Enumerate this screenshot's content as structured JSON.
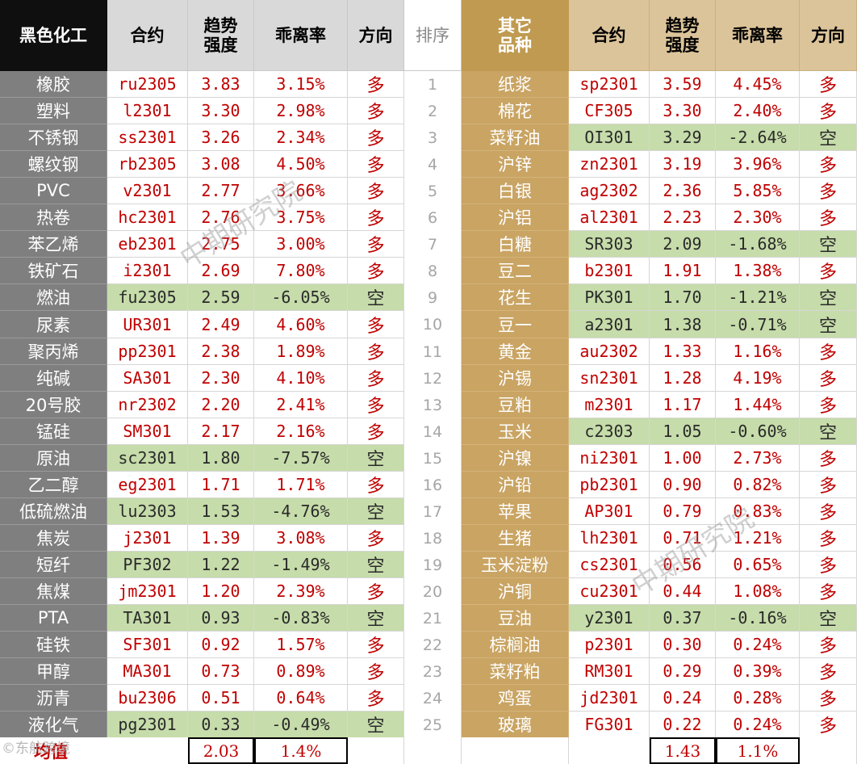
{
  "headers": {
    "left_name": "黑色化工",
    "contract": "合约",
    "trend": "趋势\n强度",
    "deviation": "乖离率",
    "direction": "方向",
    "rank": "排序",
    "right_name": "其它\n品种"
  },
  "ranks": [
    "1",
    "2",
    "3",
    "4",
    "5",
    "6",
    "7",
    "8",
    "9",
    "10",
    "11",
    "12",
    "13",
    "14",
    "15",
    "16",
    "17",
    "18",
    "19",
    "20",
    "21",
    "22",
    "23",
    "24",
    "25"
  ],
  "left_rows": [
    {
      "name": "橡胶",
      "contract": "ru2305",
      "trend": "3.83",
      "deviation": "3.15%",
      "direction": "多"
    },
    {
      "name": "塑料",
      "contract": "l2301",
      "trend": "3.30",
      "deviation": "2.98%",
      "direction": "多"
    },
    {
      "name": "不锈钢",
      "contract": "ss2301",
      "trend": "3.26",
      "deviation": "2.34%",
      "direction": "多"
    },
    {
      "name": "螺纹钢",
      "contract": "rb2305",
      "trend": "3.08",
      "deviation": "4.50%",
      "direction": "多"
    },
    {
      "name": "PVC",
      "contract": "v2301",
      "trend": "2.77",
      "deviation": "3.66%",
      "direction": "多"
    },
    {
      "name": "热卷",
      "contract": "hc2301",
      "trend": "2.76",
      "deviation": "3.75%",
      "direction": "多"
    },
    {
      "name": "苯乙烯",
      "contract": "eb2301",
      "trend": "2.75",
      "deviation": "3.00%",
      "direction": "多"
    },
    {
      "name": "铁矿石",
      "contract": "i2301",
      "trend": "2.69",
      "deviation": "7.80%",
      "direction": "多"
    },
    {
      "name": "燃油",
      "contract": "fu2305",
      "trend": "2.59",
      "deviation": "-6.05%",
      "direction": "空"
    },
    {
      "name": "尿素",
      "contract": "UR301",
      "trend": "2.49",
      "deviation": "4.60%",
      "direction": "多"
    },
    {
      "name": "聚丙烯",
      "contract": "pp2301",
      "trend": "2.38",
      "deviation": "1.89%",
      "direction": "多"
    },
    {
      "name": "纯碱",
      "contract": "SA301",
      "trend": "2.30",
      "deviation": "4.10%",
      "direction": "多"
    },
    {
      "name": "20号胶",
      "contract": "nr2302",
      "trend": "2.20",
      "deviation": "2.41%",
      "direction": "多"
    },
    {
      "name": "锰硅",
      "contract": "SM301",
      "trend": "2.17",
      "deviation": "2.16%",
      "direction": "多"
    },
    {
      "name": "原油",
      "contract": "sc2301",
      "trend": "1.80",
      "deviation": "-7.57%",
      "direction": "空"
    },
    {
      "name": "乙二醇",
      "contract": "eg2301",
      "trend": "1.71",
      "deviation": "1.71%",
      "direction": "多"
    },
    {
      "name": "低硫燃油",
      "contract": "lu2303",
      "trend": "1.53",
      "deviation": "-4.76%",
      "direction": "空"
    },
    {
      "name": "焦炭",
      "contract": "j2301",
      "trend": "1.39",
      "deviation": "3.08%",
      "direction": "多"
    },
    {
      "name": "短纤",
      "contract": "PF302",
      "trend": "1.22",
      "deviation": "-1.49%",
      "direction": "空"
    },
    {
      "name": "焦煤",
      "contract": "jm2301",
      "trend": "1.20",
      "deviation": "2.39%",
      "direction": "多"
    },
    {
      "name": "PTA",
      "contract": "TA301",
      "trend": "0.93",
      "deviation": "-0.83%",
      "direction": "空"
    },
    {
      "name": "硅铁",
      "contract": "SF301",
      "trend": "0.92",
      "deviation": "1.57%",
      "direction": "多"
    },
    {
      "name": "甲醇",
      "contract": "MA301",
      "trend": "0.73",
      "deviation": "0.89%",
      "direction": "多"
    },
    {
      "name": "沥青",
      "contract": "bu2306",
      "trend": "0.51",
      "deviation": "0.64%",
      "direction": "多"
    },
    {
      "name": "液化气",
      "contract": "pg2301",
      "trend": "0.33",
      "deviation": "-0.49%",
      "direction": "空"
    }
  ],
  "right_rows": [
    {
      "name": "纸浆",
      "contract": "sp2301",
      "trend": "3.59",
      "deviation": "4.45%",
      "direction": "多"
    },
    {
      "name": "棉花",
      "contract": "CF305",
      "trend": "3.30",
      "deviation": "2.40%",
      "direction": "多"
    },
    {
      "name": "菜籽油",
      "contract": "OI301",
      "trend": "3.29",
      "deviation": "-2.64%",
      "direction": "空"
    },
    {
      "name": "沪锌",
      "contract": "zn2301",
      "trend": "3.19",
      "deviation": "3.96%",
      "direction": "多"
    },
    {
      "name": "白银",
      "contract": "ag2302",
      "trend": "2.36",
      "deviation": "5.85%",
      "direction": "多"
    },
    {
      "name": "沪铝",
      "contract": "al2301",
      "trend": "2.23",
      "deviation": "2.30%",
      "direction": "多"
    },
    {
      "name": "白糖",
      "contract": "SR303",
      "trend": "2.09",
      "deviation": "-1.68%",
      "direction": "空"
    },
    {
      "name": "豆二",
      "contract": "b2301",
      "trend": "1.91",
      "deviation": "1.38%",
      "direction": "多"
    },
    {
      "name": "花生",
      "contract": "PK301",
      "trend": "1.70",
      "deviation": "-1.21%",
      "direction": "空"
    },
    {
      "name": "豆一",
      "contract": "a2301",
      "trend": "1.38",
      "deviation": "-0.71%",
      "direction": "空"
    },
    {
      "name": "黄金",
      "contract": "au2302",
      "trend": "1.33",
      "deviation": "1.16%",
      "direction": "多"
    },
    {
      "name": "沪锡",
      "contract": "sn2301",
      "trend": "1.28",
      "deviation": "4.19%",
      "direction": "多"
    },
    {
      "name": "豆粕",
      "contract": "m2301",
      "trend": "1.17",
      "deviation": "1.44%",
      "direction": "多"
    },
    {
      "name": "玉米",
      "contract": "c2303",
      "trend": "1.05",
      "deviation": "-0.60%",
      "direction": "空"
    },
    {
      "name": "沪镍",
      "contract": "ni2301",
      "trend": "1.00",
      "deviation": "2.73%",
      "direction": "多"
    },
    {
      "name": "沪铅",
      "contract": "pb2301",
      "trend": "0.90",
      "deviation": "0.82%",
      "direction": "多"
    },
    {
      "name": "苹果",
      "contract": "AP301",
      "trend": "0.79",
      "deviation": "0.83%",
      "direction": "多"
    },
    {
      "name": "生猪",
      "contract": "lh2301",
      "trend": "0.71",
      "deviation": "1.21%",
      "direction": "多"
    },
    {
      "name": "玉米淀粉",
      "contract": "cs2301",
      "trend": "0.56",
      "deviation": "0.65%",
      "direction": "多"
    },
    {
      "name": "沪铜",
      "contract": "cu2301",
      "trend": "0.44",
      "deviation": "1.08%",
      "direction": "多"
    },
    {
      "name": "豆油",
      "contract": "y2301",
      "trend": "0.37",
      "deviation": "-0.16%",
      "direction": "空"
    },
    {
      "name": "棕榈油",
      "contract": "p2301",
      "trend": "0.30",
      "deviation": "0.24%",
      "direction": "多"
    },
    {
      "name": "菜籽粕",
      "contract": "RM301",
      "trend": "0.29",
      "deviation": "0.39%",
      "direction": "多"
    },
    {
      "name": "鸡蛋",
      "contract": "jd2301",
      "trend": "0.24",
      "deviation": "0.28%",
      "direction": "多"
    },
    {
      "name": "玻璃",
      "contract": "FG301",
      "trend": "0.22",
      "deviation": "0.24%",
      "direction": "多"
    }
  ],
  "averages": {
    "label": "均值",
    "left_trend": "2.03",
    "left_deviation": "1.4%",
    "right_trend": "1.43",
    "right_deviation": "1.1%"
  },
  "watermark": {
    "text": "中期研究院",
    "corner": "©东航跨境"
  },
  "colors": {
    "red_text": "#c00000",
    "short_fill": "#c6dcaa",
    "left_name_fill": "#7f7f7f",
    "right_name_fill": "#c9a463",
    "header_black": "#0f0f0f",
    "header_gold": "#bf9a50"
  }
}
